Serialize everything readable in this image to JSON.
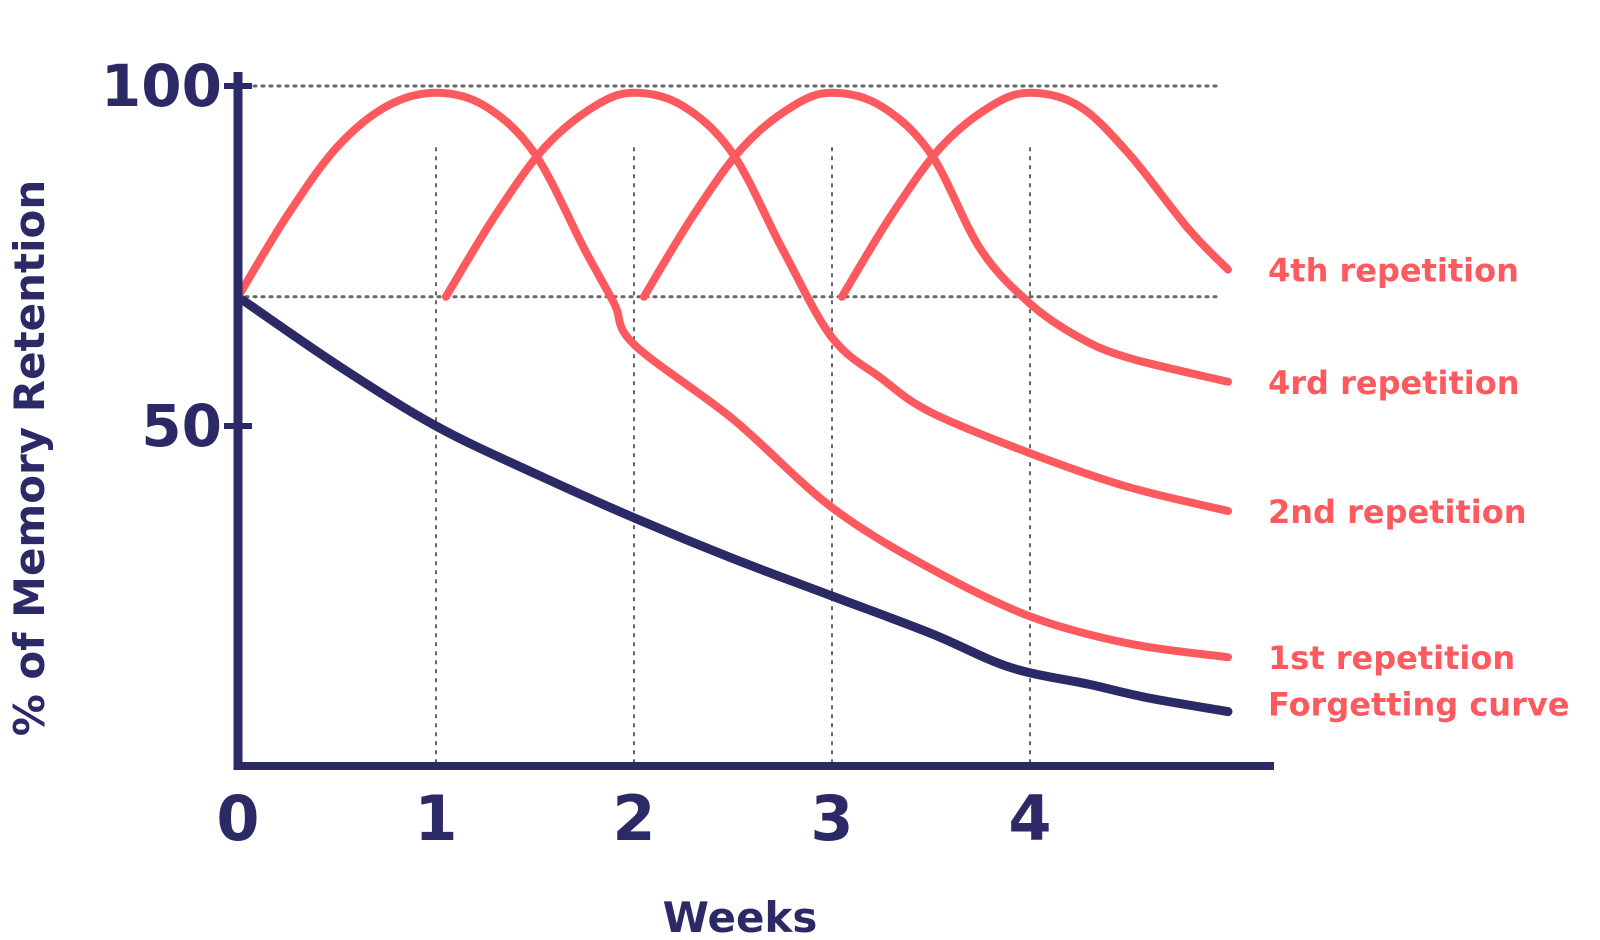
{
  "chart_data": {
    "type": "line",
    "title": "",
    "xlabel": "Weeks",
    "ylabel": "% of Memory Retention",
    "xlim": [
      0,
      5
    ],
    "ylim": [
      0,
      100
    ],
    "x_ticks": [
      "0",
      "1",
      "2",
      "3",
      "4"
    ],
    "y_ticks": [
      "50",
      "100"
    ],
    "reference_lines_y": [
      100,
      69
    ],
    "colors": {
      "axis": "#2c2a66",
      "repetition": "#fd5a5f",
      "grid": "#666666"
    },
    "series": [
      {
        "name": "Forgetting curve",
        "color": "#2c2a66",
        "points": [
          [
            0,
            69
          ],
          [
            0.5,
            59
          ],
          [
            1,
            50
          ],
          [
            1.5,
            43
          ],
          [
            2,
            36.5
          ],
          [
            2.5,
            30.5
          ],
          [
            3,
            25
          ],
          [
            3.5,
            19.5
          ],
          [
            3.9,
            14.5
          ],
          [
            4.3,
            12
          ],
          [
            4.6,
            10
          ],
          [
            5,
            8
          ]
        ]
      },
      {
        "name": "1st repetition",
        "color": "#fd5a5f",
        "points": [
          [
            0,
            69
          ],
          [
            0.25,
            81
          ],
          [
            0.5,
            91
          ],
          [
            0.75,
            97
          ],
          [
            1,
            99
          ],
          [
            1.25,
            97
          ],
          [
            1.5,
            90
          ],
          [
            1.75,
            76
          ],
          [
            1.9,
            68
          ],
          [
            2,
            62
          ],
          [
            2.5,
            51
          ],
          [
            3,
            38
          ],
          [
            3.5,
            29
          ],
          [
            4,
            22
          ],
          [
            4.5,
            18
          ],
          [
            5,
            16
          ]
        ]
      },
      {
        "name": "2nd repetition",
        "color": "#fd5a5f",
        "points": [
          [
            1.05,
            69
          ],
          [
            1.3,
            81
          ],
          [
            1.55,
            91
          ],
          [
            1.8,
            97
          ],
          [
            2,
            99
          ],
          [
            2.25,
            97
          ],
          [
            2.5,
            90
          ],
          [
            2.75,
            76
          ],
          [
            3,
            63
          ],
          [
            3.25,
            57
          ],
          [
            3.5,
            52
          ],
          [
            4,
            46
          ],
          [
            4.5,
            41
          ],
          [
            5,
            37.5
          ]
        ]
      },
      {
        "name": "4rd repetition",
        "color": "#fd5a5f",
        "points": [
          [
            2.05,
            69
          ],
          [
            2.3,
            81
          ],
          [
            2.55,
            91
          ],
          [
            2.8,
            97
          ],
          [
            3,
            99
          ],
          [
            3.25,
            97
          ],
          [
            3.5,
            90
          ],
          [
            3.75,
            76
          ],
          [
            4,
            68
          ],
          [
            4.25,
            63
          ],
          [
            4.5,
            60
          ],
          [
            5,
            56.5
          ]
        ]
      },
      {
        "name": "4th repetition",
        "color": "#fd5a5f",
        "points": [
          [
            3.05,
            69
          ],
          [
            3.3,
            81
          ],
          [
            3.55,
            91
          ],
          [
            3.8,
            97
          ],
          [
            4,
            99
          ],
          [
            4.25,
            97
          ],
          [
            4.5,
            90
          ],
          [
            4.8,
            79
          ],
          [
            5,
            73
          ]
        ]
      }
    ]
  }
}
